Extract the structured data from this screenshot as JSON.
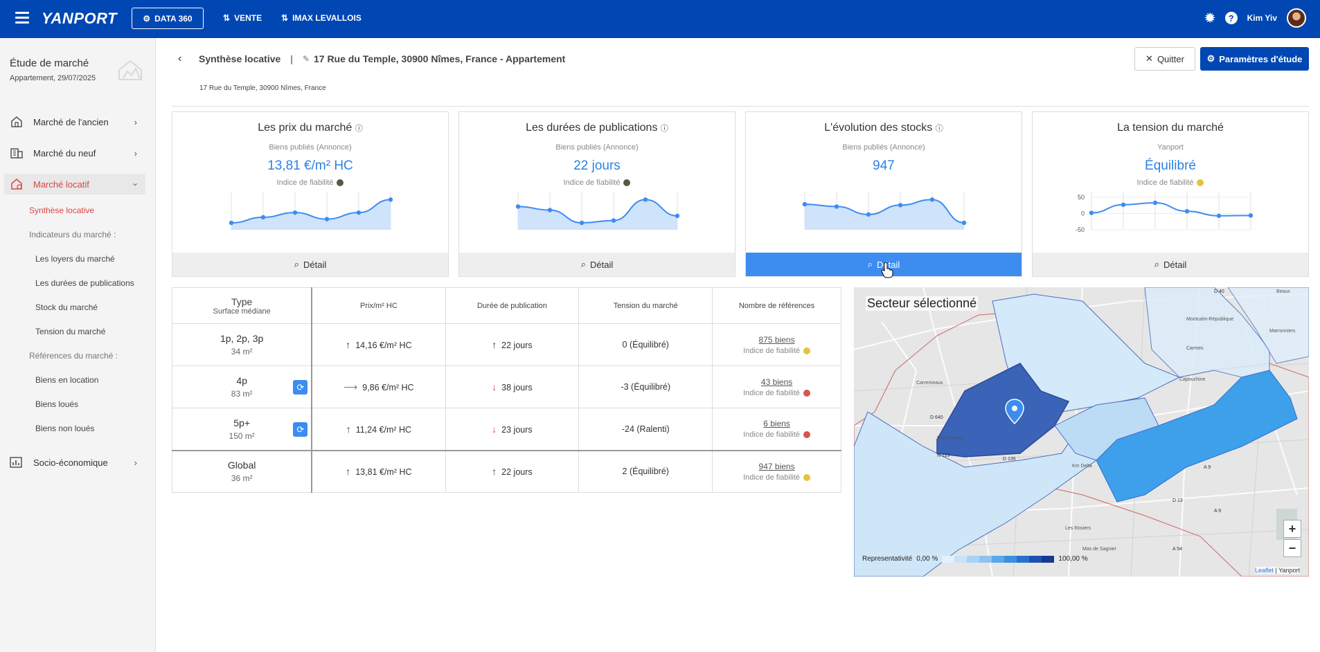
{
  "topbar": {
    "logo": "YANPORT",
    "data360_label": "DATA 360",
    "nav": [
      "VENTE",
      "IMAX LEVALLOIS"
    ],
    "user_name": "Kim Yiv",
    "brand_color": "#0047b3"
  },
  "sidebar": {
    "title": "Étude de marché",
    "subtitle": "Appartement, 29/07/2025",
    "items": [
      {
        "label": "Marché de l'ancien",
        "icon": "house-hand-icon"
      },
      {
        "label": "Marché du neuf",
        "icon": "building-icon"
      },
      {
        "label": "Marché locatif",
        "icon": "house-key-icon",
        "active": true
      },
      {
        "label": "Socio-économique",
        "icon": "chart-icon"
      }
    ],
    "sub_items": {
      "synthese": "Synthèse locative",
      "indicateurs_title": "Indicateurs du marché :",
      "loyers": "Les loyers du marché",
      "durees": "Les durées de publications",
      "stock": "Stock du marché",
      "tension": "Tension du marché",
      "references_title": "Références du marché :",
      "en_location": "Biens en location",
      "loues": "Biens loués",
      "non_loues": "Biens non loués"
    }
  },
  "header": {
    "breadcrumb_title": "Synthèse locative",
    "separator": "|",
    "breadcrumb_detail": "17 Rue du Temple, 30900 Nîmes, France - Appartement",
    "address": "17 Rue du Temple, 30900 Nîmes, France",
    "quit_label": "Quitter",
    "params_label": "Paramètres d'étude"
  },
  "cards": [
    {
      "title": "Les prix du marché",
      "subtitle": "Biens publiés (Annonce)",
      "value": "13,81 €/m² HC",
      "reliability_label": "Indice de fiabilité",
      "reliability_color": "#555a48",
      "detail_label": "Détail"
    },
    {
      "title": "Les durées de publications",
      "subtitle": "Biens publiés (Annonce)",
      "value": "22 jours",
      "reliability_label": "Indice de fiabilité",
      "reliability_color": "#555a48",
      "detail_label": "Détail"
    },
    {
      "title": "L'évolution des stocks",
      "subtitle": "Biens publiés (Annonce)",
      "value": "947",
      "detail_label": "Détail"
    },
    {
      "title": "La tension du marché",
      "subtitle": "Yanport",
      "value": "Équilibré",
      "reliability_label": "Indice de fiabilité",
      "reliability_color": "#e8c13c",
      "detail_label": "Détail",
      "y_ticks": [
        "50",
        "0",
        "-50"
      ]
    }
  ],
  "table": {
    "headers": {
      "type": "Type",
      "surface": "Surface médiane",
      "prix": "Prix/m² HC",
      "duree": "Durée de publication",
      "tension": "Tension du marché",
      "refs": "Nombre de références"
    },
    "rows": [
      {
        "type": "1p, 2p, 3p",
        "surface": "34 m²",
        "prix": "14,16 €/m² HC",
        "prix_trend": "up",
        "duree": "22 jours",
        "duree_trend": "up",
        "tension": "0 (Équilibré)",
        "refs": "875 biens",
        "rel_label": "Indice de fiabilité",
        "rel_color": "#e8c13c",
        "refresh": false
      },
      {
        "type": "4p",
        "surface": "83 m²",
        "prix": "9,86 €/m² HC",
        "prix_trend": "flat",
        "duree": "38 jours",
        "duree_trend": "down",
        "tension": "-3 (Équilibré)",
        "refs": "43 biens",
        "rel_label": "Indice de fiabilité",
        "rel_color": "#d9534f",
        "refresh": true
      },
      {
        "type": "5p+",
        "surface": "150 m²",
        "prix": "11,24 €/m² HC",
        "prix_trend": "up",
        "duree": "23 jours",
        "duree_trend": "down",
        "tension": "-24 (Ralenti)",
        "refs": "6 biens",
        "rel_label": "Indice de fiabilité",
        "rel_color": "#d9534f",
        "refresh": true
      },
      {
        "type": "Global",
        "surface": "36 m²",
        "prix": "13,81 €/m² HC",
        "prix_trend": "up",
        "duree": "22 jours",
        "duree_trend": "up",
        "tension": "2 (Équilibré)",
        "refs": "947 biens",
        "rel_label": "Indice de fiabilité",
        "rel_color": "#e8c13c",
        "refresh": false
      }
    ]
  },
  "map": {
    "title": "Secteur sélectionné",
    "legend_label": "Representativité",
    "legend_min": "0,00 %",
    "legend_max": "100,00 %",
    "legend_colors": [
      "#e3f1fc",
      "#c8e2f8",
      "#a9d2f4",
      "#8cc3f0",
      "#5aa8e9",
      "#3a8fdf",
      "#2a6fd0",
      "#1f4fb0",
      "#153890"
    ],
    "zoom_in": "+",
    "zoom_out": "−",
    "attribution_link": "Leaflet",
    "attribution_sep": " | ",
    "attribution_text": "Yanport",
    "road_labels": [
      "D 40",
      "D 640",
      "N 113",
      "A 54",
      "D 13",
      "A 9",
      "D 135",
      "A 9"
    ],
    "place_labels": [
      "Montcalm-République",
      "Marronniers",
      "Carmes",
      "Capouchine",
      "Carremeaux",
      "Mas Roman",
      "Km Delta",
      "Les Rosiers",
      "Mas de Sagnier",
      "Beaux"
    ]
  },
  "chart_data": [
    {
      "type": "area",
      "title": "Les prix du marché",
      "x": [
        1,
        2,
        3,
        4,
        5,
        6
      ],
      "values": [
        11.8,
        12.4,
        12.9,
        12.2,
        12.9,
        14.3
      ]
    },
    {
      "type": "area",
      "title": "Les durées de publications",
      "x": [
        1,
        2,
        3,
        4,
        5,
        6
      ],
      "values": [
        28,
        25,
        14,
        16,
        34,
        20
      ]
    },
    {
      "type": "area",
      "title": "L'évolution des stocks",
      "x": [
        1,
        2,
        3,
        4,
        5,
        6
      ],
      "values": [
        970,
        965,
        948,
        968,
        980,
        930
      ]
    },
    {
      "type": "line",
      "title": "La tension du marché",
      "x": [
        1,
        2,
        3,
        4,
        5,
        6
      ],
      "values": [
        2,
        27,
        33,
        7,
        -7,
        -6
      ],
      "ylim": [
        -50,
        50
      ],
      "yticks": [
        50,
        0,
        -50
      ]
    }
  ]
}
